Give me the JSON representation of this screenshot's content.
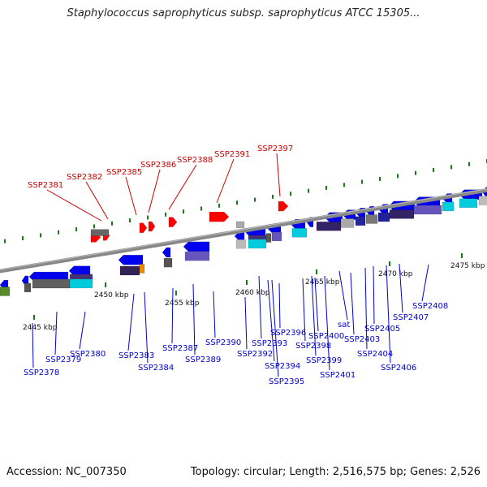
{
  "title": "Staphylococcus saprophyticus subsp. saprophyticus ATCC 15305...",
  "footer": {
    "accession": "Accession: NC_007350",
    "summary": "Topology: circular; Length: 2,516,575 bp; Genes: 2,526"
  },
  "colors": {
    "forward_highlight": "#ff0000",
    "gene_blue": "#0000ee",
    "label_blue": "#0000cc",
    "label_red": "#cc0000",
    "backbone": "#888888",
    "tick_green": "#1a7a1a"
  },
  "ticks": [
    {
      "label": "2445 kbp"
    },
    {
      "label": "2450 kbp"
    },
    {
      "label": "2455 kbp"
    },
    {
      "label": "2460 kbp"
    },
    {
      "label": "2465 kbp"
    },
    {
      "label": "2470 kbp"
    },
    {
      "label": "2475 kbp"
    }
  ],
  "labels_top": [
    "SSP2381",
    "SSP2382",
    "SSP2385",
    "SSP2386",
    "SSP2388",
    "SSP2391",
    "SSP2397"
  ],
  "labels_bottom": [
    "SSP2378",
    "SSP2379",
    "SSP2380",
    "SSP2383",
    "SSP2384",
    "SSP2387",
    "SSP2389",
    "SSP2390",
    "SSP2392",
    "SSP2393",
    "SSP2394",
    "SSP2395",
    "SSP2396",
    "SSP2398",
    "SSP2399",
    "SSP2400",
    "SSP2401",
    "sat",
    "SSP2403",
    "SSP2404",
    "SSP2405",
    "SSP2406",
    "SSP2407",
    "SSP2408"
  ]
}
